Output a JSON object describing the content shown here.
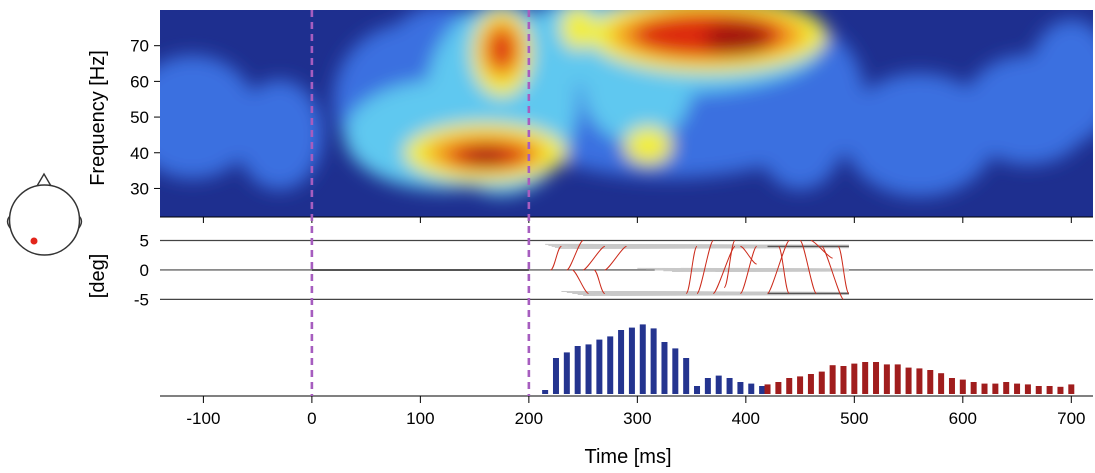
{
  "chart_data": [
    {
      "type": "heatmap",
      "ylabel": "Frequency [Hz]",
      "yticks": [
        30,
        40,
        50,
        60,
        70
      ],
      "ylim": [
        22,
        80
      ],
      "xlim": [
        -140,
        720
      ],
      "color_scale": [
        "#1e2f8f",
        "#3a6fe0",
        "#5ec8f0",
        "#f2ee3a",
        "#f4a020",
        "#dd2a10",
        "#a01510"
      ],
      "hotspots": [
        {
          "t": 160,
          "f": 39,
          "level": 1.0
        },
        {
          "t": 170,
          "f": 69,
          "level": 0.85
        },
        {
          "t": 365,
          "f": 73,
          "level": 1.0
        },
        {
          "t": 240,
          "f": 73,
          "level": 0.55
        },
        {
          "t": 310,
          "f": 42,
          "level": 0.45
        }
      ]
    },
    {
      "type": "line",
      "ylabel": "[deg]",
      "yticks": [
        5,
        0,
        -5
      ],
      "ylim": [
        -8,
        9
      ],
      "reference_lines": [
        5,
        0,
        -5
      ],
      "trace_colors": [
        "#555555",
        "#c8c8c8",
        "#cc2a1a"
      ]
    },
    {
      "type": "bar",
      "xlabel": "Time [ms]",
      "xticks": [
        -100,
        0,
        100,
        200,
        300,
        400,
        500,
        600,
        700
      ],
      "xlim": [
        -140,
        720
      ],
      "series": [
        {
          "color": "#24348f",
          "x": [
            215,
            225,
            235,
            245,
            255,
            265,
            275,
            285,
            295,
            305,
            315,
            325,
            335,
            345,
            355,
            365,
            375,
            385,
            395,
            405,
            415
          ],
          "values": [
            0.05,
            0.45,
            0.52,
            0.6,
            0.62,
            0.68,
            0.72,
            0.8,
            0.83,
            0.87,
            0.82,
            0.65,
            0.57,
            0.45,
            0.1,
            0.2,
            0.23,
            0.2,
            0.15,
            0.13,
            0.1
          ]
        },
        {
          "color": "#a01d1d",
          "x": [
            420,
            430,
            440,
            450,
            460,
            470,
            480,
            490,
            500,
            510,
            520,
            530,
            540,
            550,
            560,
            570,
            580,
            590,
            600,
            610,
            620,
            630,
            640,
            650,
            660,
            670,
            680,
            690,
            700
          ],
          "values": [
            0.12,
            0.15,
            0.2,
            0.22,
            0.25,
            0.28,
            0.36,
            0.35,
            0.38,
            0.4,
            0.4,
            0.37,
            0.37,
            0.33,
            0.32,
            0.3,
            0.26,
            0.2,
            0.18,
            0.15,
            0.13,
            0.13,
            0.15,
            0.13,
            0.12,
            0.1,
            0.1,
            0.09,
            0.12
          ]
        }
      ]
    }
  ],
  "markers": [
    0,
    200
  ],
  "marker_color": "#a65dbf",
  "electrode": {
    "color": "#e2251b"
  }
}
